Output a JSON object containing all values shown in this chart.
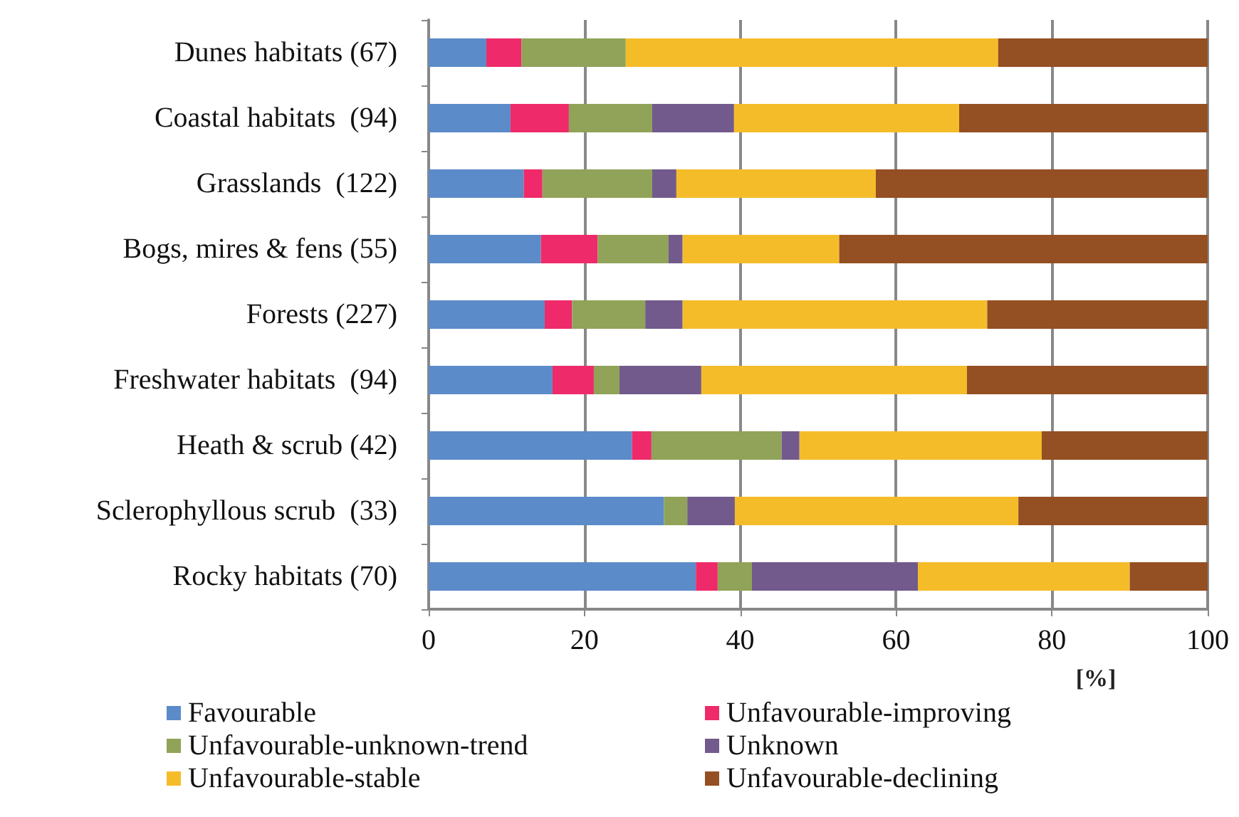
{
  "chart_data": {
    "type": "bar",
    "orientation": "horizontal",
    "stacked": true,
    "xlabel": "[%]",
    "categories": [
      "Dunes habitats (67)",
      "Coastal habitats  (94)",
      "Grasslands  (122)",
      "Bogs, mires & fens (55)",
      "Forests (227)",
      "Freshwater habitats  (94)",
      "Heath & scrub (42)",
      "Sclerophyllous scrub  (33)",
      "Rocky habitats (70)"
    ],
    "series": [
      {
        "name": "Favourable",
        "color": "#5b8bc9",
        "values": [
          7.4,
          10.5,
          12.2,
          14.4,
          14.9,
          15.9,
          26.1,
          30.2,
          34.3
        ]
      },
      {
        "name": "Unfavourable-improving",
        "color": "#ee2a6a",
        "values": [
          4.5,
          7.5,
          2.4,
          7.3,
          3.5,
          5.3,
          2.5,
          0,
          2.8
        ]
      },
      {
        "name": "Unfavourable-unknown-trend",
        "color": "#90a358",
        "values": [
          13.4,
          10.7,
          14.1,
          9.1,
          9.4,
          3.3,
          16.7,
          3.0,
          4.4
        ]
      },
      {
        "name": "Unknown",
        "color": "#725a8c",
        "values": [
          0,
          10.5,
          3.1,
          1.8,
          4.8,
          10.5,
          2.3,
          6.1,
          21.3
        ]
      },
      {
        "name": "Unfavourable-stable",
        "color": "#f5bc2a",
        "values": [
          47.8,
          28.9,
          25.6,
          20.1,
          39.1,
          34.1,
          31.1,
          36.4,
          27.2
        ]
      },
      {
        "name": "Unfavourable-declining",
        "color": "#944f22",
        "values": [
          26.9,
          31.9,
          42.6,
          47.3,
          28.3,
          30.9,
          21.3,
          24.3,
          10.0
        ]
      }
    ],
    "xlim": [
      0,
      100
    ],
    "xticks": [
      0,
      20,
      40,
      60,
      80,
      100
    ],
    "grid": "x",
    "legend": "bottom"
  }
}
